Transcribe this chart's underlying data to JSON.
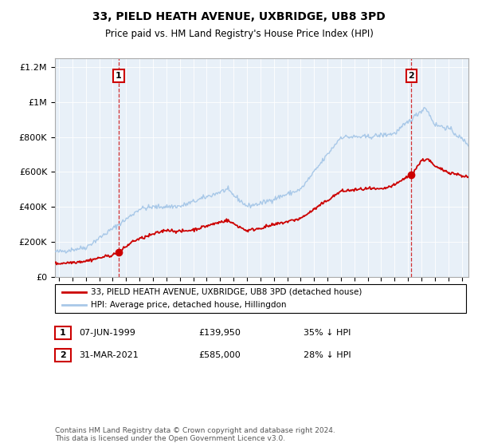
{
  "title": "33, PIELD HEATH AVENUE, UXBRIDGE, UB8 3PD",
  "subtitle": "Price paid vs. HM Land Registry's House Price Index (HPI)",
  "legend_line1": "33, PIELD HEATH AVENUE, UXBRIDGE, UB8 3PD (detached house)",
  "legend_line2": "HPI: Average price, detached house, Hillingdon",
  "footnote": "Contains HM Land Registry data © Crown copyright and database right 2024.\nThis data is licensed under the Open Government Licence v3.0.",
  "transaction1": {
    "label": "1",
    "date": "07-JUN-1999",
    "price": "£139,950",
    "hpi": "35% ↓ HPI",
    "year": 1999.44
  },
  "transaction2": {
    "label": "2",
    "date": "31-MAR-2021",
    "price": "£585,000",
    "hpi": "28% ↓ HPI",
    "year": 2021.25
  },
  "hpi_color": "#a8c8e8",
  "price_color": "#cc0000",
  "plot_bg": "#e8f0f8",
  "ylim": [
    0,
    1250000
  ],
  "xlim_start": 1994.7,
  "xlim_end": 2025.5,
  "yticks": [
    0,
    200000,
    400000,
    600000,
    800000,
    1000000,
    1200000
  ],
  "ytick_labels": [
    "£0",
    "£200K",
    "£400K",
    "£600K",
    "£800K",
    "£1M",
    "£1.2M"
  ]
}
